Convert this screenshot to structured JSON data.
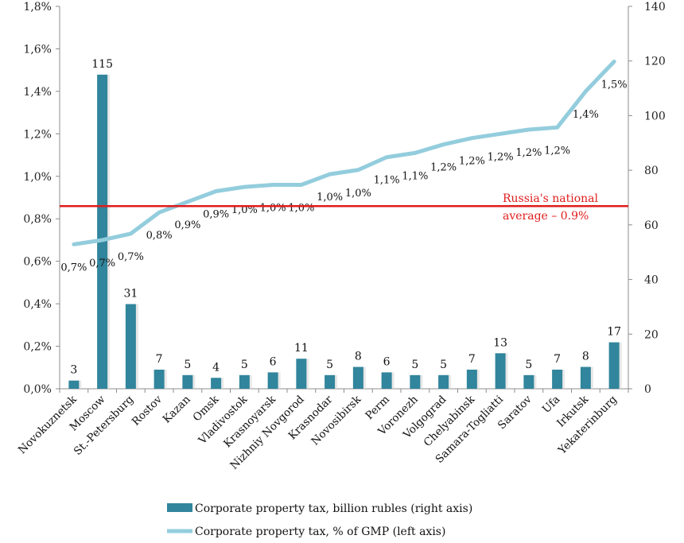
{
  "chart_data": {
    "type": "bar+line",
    "categories": [
      "Novokuznetsk",
      "Moscow",
      "St.-Petersburg",
      "Rostov",
      "Kazan",
      "Omsk",
      "Vladivostok",
      "Krasnoyarsk",
      "Nizhniy Novgorod",
      "Krasnodar",
      "Novosibirsk",
      "Perm",
      "Voronezh",
      "Volgograd",
      "Chelyabinsk",
      "Samara-Togliatti",
      "Saratov",
      "Ufa",
      "Irkutsk",
      "Yekaterinburg"
    ],
    "left_axis": {
      "min": 0,
      "max": 1.8,
      "step": 0.2,
      "ticks": [
        "0,0%",
        "0,2%",
        "0,4%",
        "0,6%",
        "0,8%",
        "1,0%",
        "1,2%",
        "1,4%",
        "1,6%",
        "1,8%"
      ]
    },
    "right_axis": {
      "min": 0,
      "max": 140,
      "step": 20,
      "ticks": [
        "0",
        "20",
        "40",
        "60",
        "80",
        "100",
        "120",
        "140"
      ]
    },
    "series": [
      {
        "name": "Corporate property tax, billion rubles (right axis)",
        "type": "bar",
        "axis": "right",
        "color": "#31859c",
        "values": [
          3,
          115,
          31,
          7,
          5,
          4,
          5,
          6,
          11,
          5,
          8,
          6,
          5,
          5,
          7,
          13,
          5,
          7,
          8,
          17
        ],
        "labels": [
          "3",
          "115",
          "31",
          "7",
          "5",
          "4",
          "5",
          "6",
          "11",
          "5",
          "8",
          "6",
          "5",
          "5",
          "7",
          "13",
          "5",
          "7",
          "8",
          "17"
        ]
      },
      {
        "name": "Corporate property tax, % of GMP (left axis)",
        "type": "line",
        "axis": "left",
        "color": "#93cddd",
        "values": [
          0.68,
          0.7,
          0.73,
          0.83,
          0.88,
          0.93,
          0.95,
          0.96,
          0.96,
          1.01,
          1.03,
          1.09,
          1.11,
          1.15,
          1.18,
          1.2,
          1.22,
          1.23,
          1.4,
          1.54
        ],
        "labels": [
          "0,7%",
          "0,7%",
          "0,7%",
          "0,8%",
          "0,9%",
          "0,9%",
          "1,0%",
          "1,0%",
          "1,0%",
          "1,0%",
          "1,0%",
          "1,1%",
          "1,1%",
          "1,2%",
          "1,2%",
          "1,2%",
          "1,2%",
          "1,2%",
          "1,4%",
          "1,5%"
        ]
      }
    ],
    "reference_line": {
      "value": 0.86,
      "axis": "left",
      "color": "#e01c1c",
      "label_line1": "Russia's national",
      "label_line2": "average –  0.9%"
    },
    "legend_position": "bottom"
  }
}
